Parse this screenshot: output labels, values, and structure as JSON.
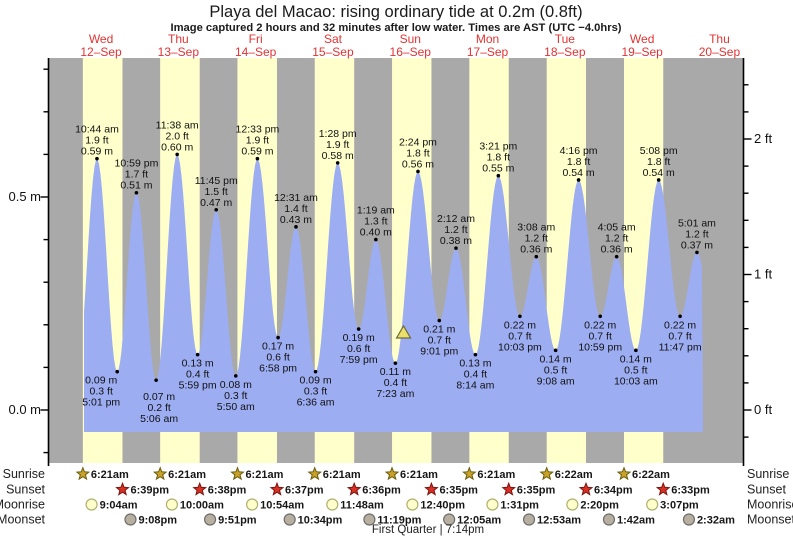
{
  "title": "Playa del Macao: rising  ordinary tide at 0.2m (0.8ft)",
  "subtitle": "Image captured 2 hours and 32 minutes after low water. Times are AST (UTC −4.0hrs)",
  "colors": {
    "day_stripe": "#ffffcc",
    "night_stripe": "#a9a9a9",
    "tide_fill": "#9dadf2",
    "date_red": "#e23333",
    "axis_black": "#000000",
    "sunrise_star": "#c9a227",
    "sunset_star": "#d93025",
    "moonrise_fill": "#ffffcc",
    "moonset_fill": "#b7afa0",
    "marker_yellow": "#ece06a"
  },
  "chart_data": {
    "type": "area",
    "title": "Playa del Macao: rising ordinary tide at 0.2m (0.8ft)",
    "ylabel_left": "m",
    "ylabel_right": "ft",
    "y_left_tick_labels": [
      "0.5 m",
      "0.0 m"
    ],
    "y_right_tick_labels": [
      "2 ft",
      "1 ft",
      "0 ft"
    ],
    "y_range_m": [
      -0.13,
      0.83
    ],
    "grid": false,
    "days": [
      {
        "dow": "Wed",
        "date": "12–Sep"
      },
      {
        "dow": "Thu",
        "date": "13–Sep"
      },
      {
        "dow": "Fri",
        "date": "14–Sep"
      },
      {
        "dow": "Sat",
        "date": "15–Sep"
      },
      {
        "dow": "Sun",
        "date": "16–Sep"
      },
      {
        "dow": "Mon",
        "date": "17–Sep"
      },
      {
        "dow": "Tue",
        "date": "18–Sep"
      },
      {
        "dow": "Wed",
        "date": "19–Sep"
      },
      {
        "dow": "Thu",
        "date": "20–Sep"
      }
    ],
    "tide_events": [
      {
        "day": 0,
        "type": "high",
        "time": "10:44 am",
        "ft": "1.9 ft",
        "m": "0.59 m"
      },
      {
        "day": 0,
        "type": "low",
        "time": "5:01 pm",
        "ft": "0.3 ft",
        "m": "0.09 m"
      },
      {
        "day": 0,
        "type": "high",
        "time": "10:59 pm",
        "ft": "1.7 ft",
        "m": "0.51 m"
      },
      {
        "day": 1,
        "type": "low",
        "time": "5:06 am",
        "ft": "0.2 ft",
        "m": "0.07 m"
      },
      {
        "day": 1,
        "type": "high",
        "time": "11:38 am",
        "ft": "2.0 ft",
        "m": "0.60 m"
      },
      {
        "day": 1,
        "type": "low",
        "time": "5:59 pm",
        "ft": "0.4 ft",
        "m": "0.13 m"
      },
      {
        "day": 1,
        "type": "high",
        "time": "11:45 pm",
        "ft": "1.5 ft",
        "m": "0.47 m"
      },
      {
        "day": 2,
        "type": "low",
        "time": "5:50 am",
        "ft": "0.3 ft",
        "m": "0.08 m"
      },
      {
        "day": 2,
        "type": "high",
        "time": "12:33 pm",
        "ft": "1.9 ft",
        "m": "0.59 m"
      },
      {
        "day": 2,
        "type": "low",
        "time": "6:58 pm",
        "ft": "0.6 ft",
        "m": "0.17 m"
      },
      {
        "day": 3,
        "type": "high",
        "time": "12:31 am",
        "ft": "1.4 ft",
        "m": "0.43 m"
      },
      {
        "day": 3,
        "type": "low",
        "time": "6:36 am",
        "ft": "0.3 ft",
        "m": "0.09 m"
      },
      {
        "day": 3,
        "type": "high",
        "time": "1:28 pm",
        "ft": "1.9 ft",
        "m": "0.58 m"
      },
      {
        "day": 3,
        "type": "low",
        "time": "7:59 pm",
        "ft": "0.6 ft",
        "m": "0.19 m"
      },
      {
        "day": 4,
        "type": "high",
        "time": "1:19 am",
        "ft": "1.3 ft",
        "m": "0.40 m"
      },
      {
        "day": 4,
        "type": "low",
        "time": "7:23 am",
        "ft": "0.4 ft",
        "m": "0.11 m"
      },
      {
        "day": 4,
        "type": "high",
        "time": "2:24 pm",
        "ft": "1.8 ft",
        "m": "0.56 m"
      },
      {
        "day": 4,
        "type": "low",
        "time": "9:01 pm",
        "ft": "0.7 ft",
        "m": "0.21 m"
      },
      {
        "day": 5,
        "type": "high",
        "time": "2:12 am",
        "ft": "1.2 ft",
        "m": "0.38 m"
      },
      {
        "day": 5,
        "type": "low",
        "time": "8:14 am",
        "ft": "0.4 ft",
        "m": "0.13 m"
      },
      {
        "day": 5,
        "type": "high",
        "time": "3:21 pm",
        "ft": "1.8 ft",
        "m": "0.55 m"
      },
      {
        "day": 5,
        "type": "low",
        "time": "10:03 pm",
        "ft": "0.7 ft",
        "m": "0.22 m"
      },
      {
        "day": 6,
        "type": "high",
        "time": "3:08 am",
        "ft": "1.2 ft",
        "m": "0.36 m"
      },
      {
        "day": 6,
        "type": "low",
        "time": "9:08 am",
        "ft": "0.5 ft",
        "m": "0.14 m"
      },
      {
        "day": 6,
        "type": "high",
        "time": "4:16 pm",
        "ft": "1.8 ft",
        "m": "0.54 m"
      },
      {
        "day": 6,
        "type": "low",
        "time": "10:59 pm",
        "ft": "0.7 ft",
        "m": "0.22 m"
      },
      {
        "day": 7,
        "type": "high",
        "time": "4:05 am",
        "ft": "1.2 ft",
        "m": "0.36 m"
      },
      {
        "day": 7,
        "type": "low",
        "time": "10:03 am",
        "ft": "0.5 ft",
        "m": "0.14 m"
      },
      {
        "day": 7,
        "type": "high",
        "time": "5:08 pm",
        "ft": "1.8 ft",
        "m": "0.54 m"
      },
      {
        "day": 7,
        "type": "low",
        "time": "11:47 pm",
        "ft": "0.7 ft",
        "m": "0.22 m"
      },
      {
        "day": 8,
        "type": "high",
        "time": "5:01 am",
        "ft": "1.2 ft",
        "m": "0.37 m"
      }
    ],
    "now_marker": {
      "day": 4,
      "time": "9:55 am"
    },
    "sun_moon": {
      "rows": [
        {
          "label": "Sunrise",
          "icon": "sunrise-star",
          "times": [
            {
              "day": 0,
              "time": "6:21am"
            },
            {
              "day": 1,
              "time": "6:21am"
            },
            {
              "day": 2,
              "time": "6:21am"
            },
            {
              "day": 3,
              "time": "6:21am"
            },
            {
              "day": 4,
              "time": "6:21am"
            },
            {
              "day": 5,
              "time": "6:21am"
            },
            {
              "day": 6,
              "time": "6:22am"
            },
            {
              "day": 7,
              "time": "6:22am"
            }
          ]
        },
        {
          "label": "Sunset",
          "icon": "sunset-star",
          "times": [
            {
              "day": 0,
              "time": "6:39pm"
            },
            {
              "day": 1,
              "time": "6:38pm"
            },
            {
              "day": 2,
              "time": "6:37pm"
            },
            {
              "day": 3,
              "time": "6:36pm"
            },
            {
              "day": 4,
              "time": "6:35pm"
            },
            {
              "day": 5,
              "time": "6:35pm"
            },
            {
              "day": 6,
              "time": "6:34pm"
            },
            {
              "day": 7,
              "time": "6:33pm"
            }
          ]
        },
        {
          "label": "Moonrise",
          "icon": "moonrise-circle",
          "times": [
            {
              "day": 0,
              "time": "9:04am"
            },
            {
              "day": 1,
              "time": "10:00am"
            },
            {
              "day": 2,
              "time": "10:54am"
            },
            {
              "day": 3,
              "time": "11:48am"
            },
            {
              "day": 4,
              "time": "12:40pm"
            },
            {
              "day": 5,
              "time": "1:31pm"
            },
            {
              "day": 6,
              "time": "2:20pm"
            },
            {
              "day": 7,
              "time": "3:07pm"
            }
          ]
        },
        {
          "label": "Moonset",
          "icon": "moonset-circle",
          "times": [
            {
              "day": 0,
              "time": "9:08pm"
            },
            {
              "day": 1,
              "time": "9:51pm"
            },
            {
              "day": 2,
              "time": "10:34pm"
            },
            {
              "day": 3,
              "time": "11:19pm"
            },
            {
              "day": 5,
              "time": "12:05am"
            },
            {
              "day": 6,
              "time": "12:53am"
            },
            {
              "day": 7,
              "time": "1:42am"
            },
            {
              "day": 8,
              "time": "2:32am"
            }
          ]
        }
      ]
    },
    "moon_phase": "First Quarter | 7:14pm"
  }
}
